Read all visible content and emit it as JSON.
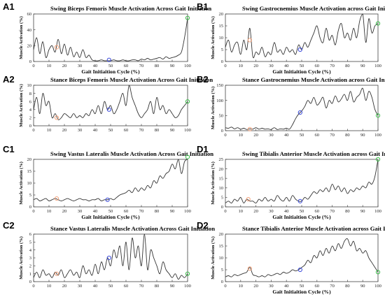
{
  "chart_data": [
    {
      "panel_label": "A1",
      "title": "Swing Biceps Femoris Muscle Activation Across Gait Initiation",
      "type": "line",
      "xlabel": "Gait Initiaition Cycle (%)",
      "ylabel": "Muscle Activation (%)",
      "xlim": [
        0,
        100
      ],
      "ylim": [
        0,
        60
      ],
      "xticks": [
        0,
        10,
        20,
        30,
        40,
        50,
        60,
        70,
        80,
        90,
        100
      ],
      "yticks": [
        0,
        20,
        40,
        60
      ],
      "grid": false,
      "x": [
        0,
        2,
        4,
        6,
        8,
        10,
        12,
        14,
        16,
        18,
        20,
        22,
        24,
        26,
        28,
        30,
        32,
        34,
        36,
        38,
        40,
        42,
        44,
        46,
        48,
        50,
        52,
        54,
        56,
        58,
        60,
        62,
        64,
        66,
        68,
        70,
        72,
        74,
        76,
        78,
        80,
        82,
        84,
        86,
        88,
        90,
        92,
        94,
        96,
        98,
        100
      ],
      "values": [
        15,
        30,
        10,
        25,
        5,
        15,
        20,
        12,
        28,
        10,
        22,
        8,
        18,
        6,
        12,
        5,
        15,
        5,
        8,
        2,
        1,
        1,
        2,
        1,
        1,
        1,
        2,
        1,
        1,
        2,
        1,
        1,
        2,
        2,
        1,
        3,
        2,
        4,
        2,
        3,
        4,
        5,
        3,
        6,
        4,
        5,
        6,
        8,
        12,
        30,
        55
      ],
      "markers": [
        {
          "x": 15,
          "y": 18,
          "color": "#f4a27a"
        },
        {
          "x": 49,
          "y": 2,
          "color": "#3b4bdb"
        },
        {
          "x": 100,
          "y": 55,
          "color": "#3cbf4a"
        }
      ]
    },
    {
      "panel_label": "B1",
      "title": "Swing Gastrocnemius Muscle Activation across Gait Initiaition",
      "type": "line",
      "xlabel": "Gait Initiaition Cycle (%)",
      "ylabel": "Muscle Activation (%)",
      "xlim": [
        0,
        100
      ],
      "ylim": [
        0,
        20
      ],
      "xticks": [
        0,
        10,
        20,
        30,
        40,
        50,
        60,
        70,
        80,
        90,
        100
      ],
      "yticks": [
        0,
        5,
        10,
        15,
        20
      ],
      "grid": false,
      "x": [
        0,
        2,
        4,
        6,
        8,
        10,
        12,
        14,
        16,
        18,
        20,
        22,
        24,
        26,
        28,
        30,
        32,
        34,
        36,
        38,
        40,
        42,
        44,
        46,
        48,
        50,
        52,
        54,
        56,
        58,
        60,
        62,
        64,
        66,
        68,
        70,
        72,
        74,
        76,
        78,
        80,
        82,
        84,
        86,
        88,
        90,
        92,
        94,
        96,
        98,
        100
      ],
      "values": [
        6,
        9,
        4,
        7,
        8,
        3,
        9,
        5,
        14,
        2,
        4,
        3,
        6,
        2,
        4,
        3,
        8,
        4,
        5,
        3,
        6,
        4,
        5,
        3,
        7,
        5,
        8,
        6,
        9,
        12,
        15,
        10,
        8,
        14,
        9,
        11,
        7,
        13,
        16,
        10,
        12,
        9,
        14,
        10,
        17,
        20,
        8,
        18,
        12,
        15,
        16
      ],
      "markers": [
        {
          "x": 16,
          "y": 9,
          "color": "#f4a27a"
        },
        {
          "x": 49,
          "y": 5,
          "color": "#3b4bdb"
        },
        {
          "x": 100,
          "y": 16,
          "color": "#3cbf4a"
        }
      ]
    },
    {
      "panel_label": "A2",
      "title": "Stance Biceps Femoris Muscle Activation Across Gait Initiation",
      "type": "line",
      "xlabel": "",
      "ylabel": "Muscle Activation (%)",
      "xlim": [
        0,
        100
      ],
      "ylim": [
        0,
        10
      ],
      "xticks": [
        0,
        10,
        20,
        30,
        40,
        50,
        60,
        70,
        80,
        90,
        100
      ],
      "yticks": [
        0,
        2,
        4,
        6,
        8,
        10
      ],
      "grid": false,
      "x": [
        0,
        2,
        4,
        6,
        8,
        10,
        12,
        14,
        16,
        18,
        20,
        22,
        24,
        26,
        28,
        30,
        32,
        34,
        36,
        38,
        40,
        42,
        44,
        46,
        48,
        50,
        52,
        54,
        56,
        58,
        60,
        62,
        64,
        66,
        68,
        70,
        72,
        74,
        76,
        78,
        80,
        82,
        84,
        86,
        88,
        90,
        92,
        94,
        96,
        98,
        100
      ],
      "values": [
        4,
        7,
        3,
        8,
        5,
        6,
        2,
        3,
        1.5,
        2,
        3,
        2.5,
        2,
        3,
        2,
        2.5,
        2,
        3,
        2.5,
        4,
        3,
        5,
        3,
        6,
        4,
        5,
        3,
        4,
        6,
        8,
        5,
        10,
        7,
        5,
        3,
        2,
        3,
        4,
        6,
        3,
        7,
        4,
        5,
        3,
        4,
        3,
        2,
        2.5,
        4,
        5,
        6
      ],
      "markers": [
        {
          "x": 15,
          "y": 2,
          "color": "#f4a27a"
        },
        {
          "x": 49,
          "y": 4,
          "color": "#3b4bdb"
        },
        {
          "x": 100,
          "y": 6,
          "color": "#3cbf4a"
        }
      ]
    },
    {
      "panel_label": "B2",
      "title": "Stance Gastrocnemius Muscle Activation across Gait Initiaition",
      "type": "line",
      "xlabel": "",
      "ylabel": "Muscle Activation (%)",
      "xlim": [
        0,
        100
      ],
      "ylim": [
        0,
        150
      ],
      "xticks": [
        0,
        10,
        20,
        30,
        40,
        50,
        60,
        70,
        80,
        90,
        100
      ],
      "yticks": [
        0,
        50,
        100,
        150
      ],
      "grid": false,
      "x": [
        0,
        2,
        4,
        6,
        8,
        10,
        12,
        14,
        16,
        18,
        20,
        22,
        24,
        26,
        28,
        30,
        32,
        34,
        36,
        38,
        40,
        42,
        44,
        46,
        48,
        50,
        52,
        54,
        56,
        58,
        60,
        62,
        64,
        66,
        68,
        70,
        72,
        74,
        76,
        78,
        80,
        82,
        84,
        86,
        88,
        90,
        92,
        94,
        96,
        98,
        100
      ],
      "values": [
        10,
        8,
        12,
        6,
        10,
        5,
        8,
        4,
        6,
        5,
        10,
        5,
        8,
        5,
        6,
        4,
        10,
        4,
        6,
        5,
        8,
        5,
        20,
        40,
        55,
        65,
        80,
        100,
        90,
        110,
        85,
        95,
        110,
        75,
        100,
        90,
        115,
        95,
        105,
        120,
        100,
        130,
        95,
        110,
        120,
        140,
        100,
        130,
        110,
        70,
        50
      ],
      "markers": [
        {
          "x": 16,
          "y": 5,
          "color": "#f4a27a"
        },
        {
          "x": 49,
          "y": 60,
          "color": "#3b4bdb"
        },
        {
          "x": 100,
          "y": 50,
          "color": "#3cbf4a"
        }
      ]
    },
    {
      "panel_label": "C1",
      "title": "Swing Vastus Lateralis Muscle Activation Across Gait Initiation",
      "type": "line",
      "xlabel": "Gait Initiaition Cycle (%)",
      "ylabel": "Muscle Activation (%)",
      "xlim": [
        0,
        100
      ],
      "ylim": [
        0,
        20
      ],
      "xticks": [
        0,
        10,
        20,
        30,
        40,
        50,
        60,
        70,
        80,
        90,
        100
      ],
      "yticks": [
        0,
        5,
        10,
        15,
        20
      ],
      "grid": false,
      "x": [
        0,
        2,
        4,
        6,
        8,
        10,
        12,
        14,
        16,
        18,
        20,
        22,
        24,
        26,
        28,
        30,
        32,
        34,
        36,
        38,
        40,
        42,
        44,
        46,
        48,
        50,
        52,
        54,
        56,
        58,
        60,
        62,
        64,
        66,
        68,
        70,
        72,
        74,
        76,
        78,
        80,
        82,
        84,
        86,
        88,
        90,
        92,
        94,
        96,
        98,
        100
      ],
      "values": [
        3,
        3.5,
        2.5,
        3,
        3.5,
        2.5,
        3,
        3.5,
        3,
        2.5,
        3,
        3.5,
        3,
        2.5,
        3,
        3.5,
        3,
        3,
        2.5,
        3,
        3,
        3.5,
        2.5,
        3,
        3,
        3.5,
        3,
        4,
        5,
        5.5,
        6,
        7,
        6,
        8,
        6.5,
        8,
        7,
        9,
        8,
        11,
        10,
        13,
        12,
        14,
        15,
        18,
        16,
        20,
        14,
        19,
        21
      ],
      "markers": [
        {
          "x": 15,
          "y": 3.5,
          "color": "#f4a27a"
        },
        {
          "x": 48,
          "y": 3,
          "color": "#3b4bdb"
        },
        {
          "x": 100,
          "y": 21,
          "color": "#3cbf4a"
        }
      ]
    },
    {
      "panel_label": "D1",
      "title": "Swing Tibialis Anterior Muscle Activation across Gait Initiation",
      "type": "line",
      "xlabel": "Gait Initiaition Cycle (%)",
      "ylabel": "Muscle Activation (%)",
      "xlim": [
        0,
        100
      ],
      "ylim": [
        0,
        25
      ],
      "xticks": [
        0,
        10,
        20,
        30,
        40,
        50,
        60,
        70,
        80,
        90,
        100
      ],
      "yticks": [
        0,
        5,
        10,
        15,
        20,
        25
      ],
      "grid": false,
      "x": [
        0,
        2,
        4,
        6,
        8,
        10,
        12,
        14,
        16,
        18,
        20,
        22,
        24,
        26,
        28,
        30,
        32,
        34,
        36,
        38,
        40,
        42,
        44,
        46,
        48,
        50,
        52,
        54,
        56,
        58,
        60,
        62,
        64,
        66,
        68,
        70,
        72,
        74,
        76,
        78,
        80,
        82,
        84,
        86,
        88,
        90,
        92,
        94,
        96,
        98,
        100
      ],
      "values": [
        2,
        3,
        2,
        4,
        3,
        5,
        2,
        4,
        3,
        3,
        2,
        4,
        3,
        5,
        3,
        4,
        3,
        6,
        4,
        3,
        5,
        3,
        6,
        4,
        3,
        3,
        5,
        4,
        6,
        8,
        7,
        9,
        8,
        10,
        8,
        12,
        9,
        11,
        8,
        10,
        7,
        9,
        8,
        10,
        9,
        11,
        10,
        13,
        12,
        16,
        25
      ],
      "markers": [
        {
          "x": 15,
          "y": 4,
          "color": "#f4a27a"
        },
        {
          "x": 49,
          "y": 3,
          "color": "#3b4bdb"
        },
        {
          "x": 100,
          "y": 25,
          "color": "#3cbf4a"
        }
      ]
    },
    {
      "panel_label": "C2",
      "title": "Stance Vastus Lateralis Muscle Activation Across Gait Initiation",
      "type": "line",
      "xlabel": "",
      "ylabel": "Muscle Activation (%)",
      "xlim": [
        0,
        100
      ],
      "ylim": [
        0,
        6
      ],
      "xticks": [
        0,
        10,
        20,
        30,
        40,
        50,
        60,
        70,
        80,
        90,
        100
      ],
      "yticks": [
        0,
        1,
        2,
        3,
        4,
        5,
        6
      ],
      "grid": false,
      "x": [
        0,
        2,
        4,
        6,
        8,
        10,
        12,
        14,
        16,
        18,
        20,
        22,
        24,
        26,
        28,
        30,
        32,
        34,
        36,
        38,
        40,
        42,
        44,
        46,
        48,
        50,
        52,
        54,
        56,
        58,
        60,
        62,
        64,
        66,
        68,
        70,
        72,
        74,
        76,
        78,
        80,
        82,
        84,
        86,
        88,
        90,
        92,
        94,
        96,
        98,
        100
      ],
      "values": [
        0.5,
        1.2,
        0.5,
        1.5,
        0.8,
        1,
        0.5,
        1.2,
        0.8,
        1.5,
        0.5,
        1,
        1.5,
        0.8,
        1.2,
        0.5,
        2,
        1,
        1.5,
        0.8,
        2.2,
        1,
        2.5,
        1.5,
        3,
        2,
        4,
        3,
        4.5,
        2,
        5,
        1.5,
        5.5,
        3,
        4.5,
        2,
        6,
        1.5,
        4,
        3,
        2,
        1,
        2.5,
        1.5,
        1,
        0.5,
        1,
        0.3,
        0.8,
        0.5,
        1
      ],
      "markers": [
        {
          "x": 15,
          "y": 1,
          "color": "#f4a27a"
        },
        {
          "x": 49,
          "y": 3,
          "color": "#3b4bdb"
        },
        {
          "x": 100,
          "y": 1,
          "color": "#3cbf4a"
        }
      ]
    },
    {
      "panel_label": "D2",
      "title": "Stance Tibialis Anterior Muscle Activation across Gait Initiation",
      "type": "line",
      "xlabel": "Gait Initiaition Cycle (%)",
      "ylabel": "Muscle Activation (%)",
      "xlim": [
        0,
        100
      ],
      "ylim": [
        0,
        20
      ],
      "xticks": [
        0,
        10,
        20,
        30,
        40,
        50,
        60,
        70,
        80,
        90,
        100
      ],
      "yticks": [
        0,
        5,
        10,
        15,
        20
      ],
      "grid": false,
      "x": [
        0,
        2,
        4,
        6,
        8,
        10,
        12,
        14,
        16,
        18,
        20,
        22,
        24,
        26,
        28,
        30,
        32,
        34,
        36,
        38,
        40,
        42,
        44,
        46,
        48,
        50,
        52,
        54,
        56,
        58,
        60,
        62,
        64,
        66,
        68,
        70,
        72,
        74,
        76,
        78,
        80,
        82,
        84,
        86,
        88,
        90,
        92,
        94,
        96,
        98,
        100
      ],
      "values": [
        2,
        2.5,
        2,
        3,
        2.5,
        3,
        3.5,
        4,
        6,
        3,
        2.5,
        2,
        2.5,
        2,
        3,
        2.5,
        3,
        3.5,
        3,
        4,
        3.5,
        4,
        5,
        4.5,
        5,
        6,
        7,
        9,
        8,
        11,
        10,
        13,
        11,
        14,
        12,
        15,
        13,
        16,
        14,
        17,
        18,
        15,
        17,
        13,
        14,
        12,
        13,
        10,
        8,
        6,
        4
      ],
      "markers": [
        {
          "x": 16,
          "y": 5.5,
          "color": "#f4a27a"
        },
        {
          "x": 49,
          "y": 5,
          "color": "#3b4bdb"
        },
        {
          "x": 100,
          "y": 4,
          "color": "#3cbf4a"
        }
      ]
    }
  ]
}
